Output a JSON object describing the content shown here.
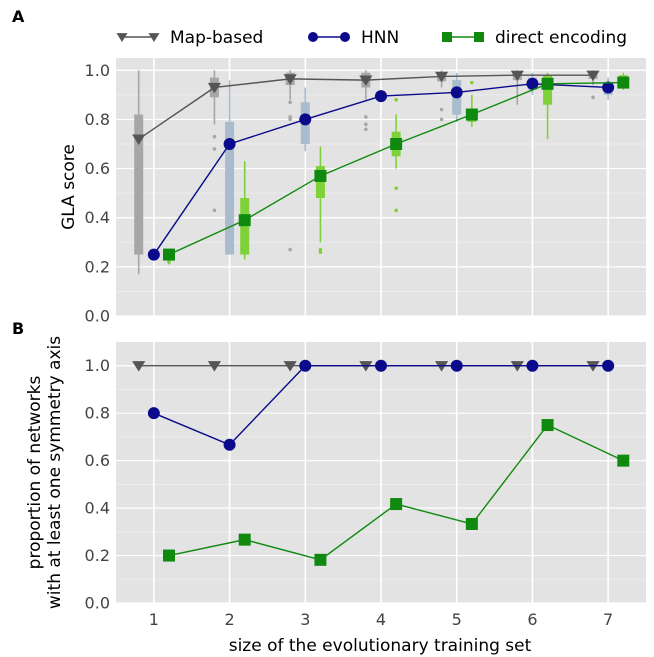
{
  "colors": {
    "map_based": "#555555",
    "hnn": "#0a0a8a",
    "direct": "#0f8a0f",
    "box_map": "#a6a6a6",
    "box_hnn": "#a9bccd",
    "box_direct": "#7fd13a",
    "panel_bg": "#e3e3e3",
    "grid": "#ffffff"
  },
  "legend": {
    "placement": "top",
    "entries": [
      {
        "name": "Map-based",
        "marker": "triangle-down"
      },
      {
        "name": "HNN",
        "marker": "circle"
      },
      {
        "name": "direct encoding",
        "marker": "square"
      }
    ]
  },
  "xlabel": "size of the evolutionary training set",
  "chart_data": [
    {
      "panel": "A",
      "type": "line",
      "ylabel": "GLA score",
      "x": [
        1,
        2,
        3,
        4,
        5,
        6,
        7
      ],
      "xlim": [
        0.5,
        7.5
      ],
      "ylim": [
        0,
        1.05
      ],
      "yticks": [
        0.0,
        0.2,
        0.4,
        0.6,
        0.8,
        1.0
      ],
      "grid": true,
      "series": [
        {
          "name": "Map-based",
          "offset": -0.2,
          "values": [
            0.72,
            0.93,
            0.965,
            0.96,
            0.975,
            0.98,
            0.98
          ]
        },
        {
          "name": "HNN",
          "offset": 0,
          "values": [
            0.25,
            0.7,
            0.8,
            0.895,
            0.91,
            0.945,
            0.93
          ]
        },
        {
          "name": "direct encoding",
          "offset": 0.2,
          "values": [
            0.25,
            0.39,
            0.57,
            0.7,
            0.82,
            0.945,
            0.95
          ]
        }
      ],
      "boxes": [
        {
          "series": "Map-based",
          "items": [
            {
              "x": 1,
              "q1": 0.25,
              "q3": 0.82,
              "med": 0.72,
              "lo": 0.17,
              "hi": 1.0,
              "out": [
                0.7,
                0.45
              ]
            },
            {
              "x": 2,
              "q1": 0.89,
              "q3": 0.97,
              "med": 0.93,
              "lo": 0.78,
              "hi": 1.0,
              "out": [
                0.73,
                0.68,
                0.43
              ]
            },
            {
              "x": 3,
              "q1": 0.94,
              "q3": 0.99,
              "med": 0.965,
              "lo": 0.88,
              "hi": 1.0,
              "out": [
                0.87,
                0.81,
                0.8,
                0.27
              ]
            },
            {
              "x": 4,
              "q1": 0.93,
              "q3": 0.99,
              "med": 0.96,
              "lo": 0.88,
              "hi": 1.0,
              "out": [
                0.81,
                0.78,
                0.76
              ]
            },
            {
              "x": 5,
              "q1": 0.955,
              "q3": 0.99,
              "med": 0.975,
              "lo": 0.93,
              "hi": 1.0,
              "out": [
                0.84,
                0.8
              ]
            },
            {
              "x": 6,
              "q1": 0.96,
              "q3": 0.99,
              "med": 0.98,
              "lo": 0.86,
              "hi": 1.0,
              "out": []
            },
            {
              "x": 7,
              "q1": 0.965,
              "q3": 0.99,
              "med": 0.98,
              "lo": 0.94,
              "hi": 1.0,
              "out": [
                0.89
              ]
            }
          ]
        },
        {
          "series": "HNN",
          "items": [
            {
              "x": 1,
              "q1": 0.25,
              "q3": 0.25,
              "med": 0.25,
              "lo": 0.25,
              "hi": 0.25,
              "out": []
            },
            {
              "x": 2,
              "q1": 0.25,
              "q3": 0.79,
              "med": 0.7,
              "lo": 0.25,
              "hi": 0.96,
              "out": []
            },
            {
              "x": 3,
              "q1": 0.7,
              "q3": 0.87,
              "med": 0.8,
              "lo": 0.67,
              "hi": 0.93,
              "out": []
            },
            {
              "x": 4,
              "q1": 0.895,
              "q3": 0.895,
              "med": 0.895,
              "lo": 0.895,
              "hi": 0.895,
              "out": []
            },
            {
              "x": 5,
              "q1": 0.82,
              "q3": 0.96,
              "med": 0.91,
              "lo": 0.79,
              "hi": 0.99,
              "out": []
            },
            {
              "x": 6,
              "q1": 0.92,
              "q3": 0.97,
              "med": 0.945,
              "lo": 0.9,
              "hi": 0.99,
              "out": []
            },
            {
              "x": 7,
              "q1": 0.9,
              "q3": 0.95,
              "med": 0.93,
              "lo": 0.88,
              "hi": 0.97,
              "out": []
            }
          ]
        },
        {
          "series": "direct encoding",
          "items": [
            {
              "x": 1,
              "q1": 0.24,
              "q3": 0.26,
              "med": 0.25,
              "lo": 0.21,
              "hi": 0.27,
              "out": [
                0.22
              ]
            },
            {
              "x": 2,
              "q1": 0.25,
              "q3": 0.48,
              "med": 0.39,
              "lo": 0.23,
              "hi": 0.63,
              "out": []
            },
            {
              "x": 3,
              "q1": 0.48,
              "q3": 0.61,
              "med": 0.57,
              "lo": 0.3,
              "hi": 0.69,
              "out": [
                0.27,
                0.26
              ]
            },
            {
              "x": 4,
              "q1": 0.65,
              "q3": 0.75,
              "med": 0.7,
              "lo": 0.6,
              "hi": 0.82,
              "out": [
                0.52,
                0.43,
                0.88
              ]
            },
            {
              "x": 5,
              "q1": 0.79,
              "q3": 0.84,
              "med": 0.82,
              "lo": 0.77,
              "hi": 0.9,
              "out": [
                0.95
              ]
            },
            {
              "x": 6,
              "q1": 0.86,
              "q3": 0.98,
              "med": 0.945,
              "lo": 0.72,
              "hi": 0.99,
              "out": []
            },
            {
              "x": 7,
              "q1": 0.93,
              "q3": 0.98,
              "med": 0.95,
              "lo": 0.92,
              "hi": 0.99,
              "out": []
            }
          ]
        }
      ]
    },
    {
      "panel": "B",
      "type": "line",
      "ylabel": "proportion of networks with at least one symmetry axis",
      "ylabel_lines": [
        "proportion of networks",
        "with at least one symmetry axis"
      ],
      "x": [
        1,
        2,
        3,
        4,
        5,
        6,
        7
      ],
      "xlim": [
        0.5,
        7.5
      ],
      "ylim": [
        0,
        1.1
      ],
      "yticks": [
        0.0,
        0.2,
        0.4,
        0.6,
        0.8,
        1.0
      ],
      "xticks": [
        1,
        2,
        3,
        4,
        5,
        6,
        7
      ],
      "grid": true,
      "series": [
        {
          "name": "Map-based",
          "offset": -0.2,
          "values": [
            1.0,
            1.0,
            1.0,
            1.0,
            1.0,
            1.0,
            1.0
          ]
        },
        {
          "name": "HNN",
          "offset": 0,
          "values": [
            0.8,
            0.667,
            1.0,
            1.0,
            1.0,
            1.0,
            1.0
          ]
        },
        {
          "name": "direct encoding",
          "offset": 0.2,
          "values": [
            0.2,
            0.267,
            0.182,
            0.417,
            0.333,
            0.75,
            0.6
          ]
        }
      ]
    }
  ]
}
